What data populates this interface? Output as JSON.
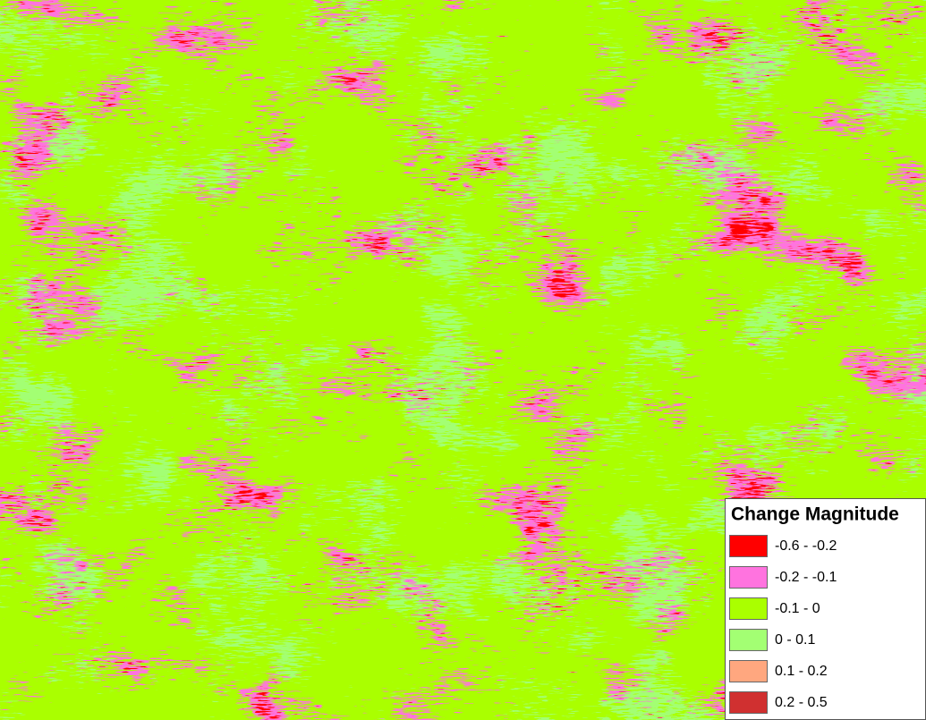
{
  "legend": {
    "title": "Change Magnitude",
    "items": [
      {
        "label": "-0.6 - -0.2",
        "color": "#ff0000"
      },
      {
        "label": "-0.2 - -0.1",
        "color": "#ff73df"
      },
      {
        "label": "-0.1 - 0",
        "color": "#aaff00"
      },
      {
        "label": "0 - 0.1",
        "color": "#a3ff73"
      },
      {
        "label": "0.1 - 0.2",
        "color": "#ffa77f"
      },
      {
        "label": "0.2 - 0.5",
        "color": "#d03030"
      }
    ]
  }
}
